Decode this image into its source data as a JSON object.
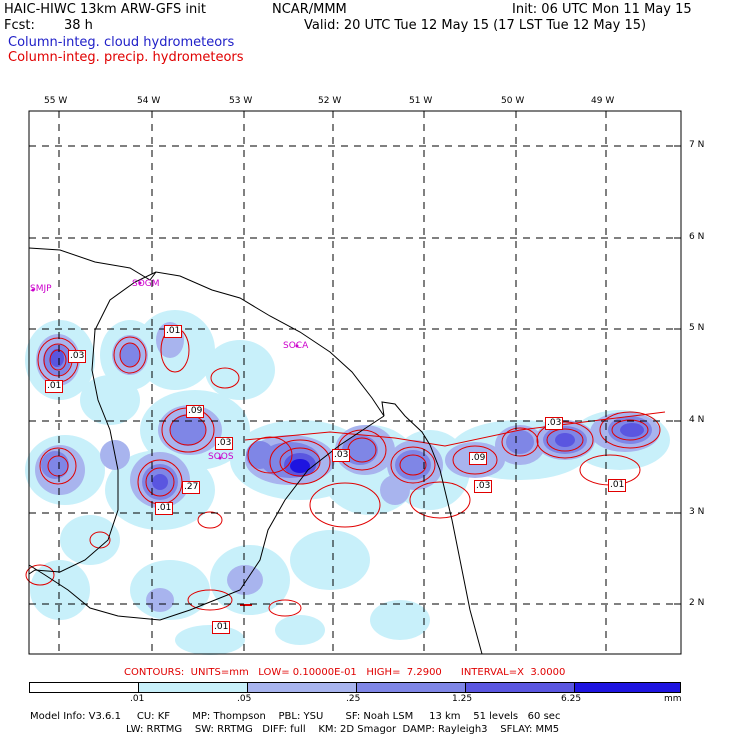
{
  "header": {
    "model": "HAIC-HIWC 13km ARW-GFS init",
    "org": "NCAR/MMM",
    "init": "Init: 06 UTC Mon 11 May 15",
    "fcst_label": "Fcst:",
    "fcst_value": "38 h",
    "valid": "Valid: 20 UTC Tue 12 May 15 (17 LST Tue 12 May 15)",
    "field_cloud": "Column-integ. cloud hydrometeors",
    "field_precip": "Column-integ. precip. hydrometeors"
  },
  "map": {
    "lon_labels": [
      "55 W",
      "54 W",
      "53 W",
      "52 W",
      "51 W",
      "50 W",
      "49 W"
    ],
    "lat_labels": [
      "7 N",
      "6 N",
      "5 N",
      "4 N",
      "3 N",
      "2 N"
    ],
    "stations": [
      "SMJP",
      "SOGM",
      "SOCA",
      "SOOS"
    ],
    "contour_labels": [
      ".01",
      ".03",
      ".01",
      ".09",
      ".03",
      ".27",
      ".01",
      ".03",
      ".09",
      ".03",
      ".03",
      ".01",
      ".01"
    ]
  },
  "contours_info": "CONTOURS:  UNITS=mm   LOW= 0.10000E-01   HIGH=  7.2900      INTERVAL=X  3.0000",
  "colorbar": {
    "colors": [
      "#ffffff",
      "#c8f0fa",
      "#a8b4ee",
      "#7f86e6",
      "#5a56e0",
      "#1e14e0"
    ],
    "ticks": [
      ".01",
      ".05",
      ".25",
      "1.25",
      "6.25"
    ],
    "unit": "mm"
  },
  "model_info": {
    "line1": "Model Info: V3.6.1     CU: KF       MP: Thompson    PBL: YSU       SF: Noah LSM     13 km    51 levels   60 sec",
    "line2": "LW: RRTMG    SW: RRTMG   DIFF: full    KM: 2D Smagor  DAMP: Rayleigh3    SFLAY: MM5"
  },
  "colors": {
    "cloud_label": "#2020c8",
    "precip_label": "#e00000",
    "station": "#cc00cc"
  }
}
